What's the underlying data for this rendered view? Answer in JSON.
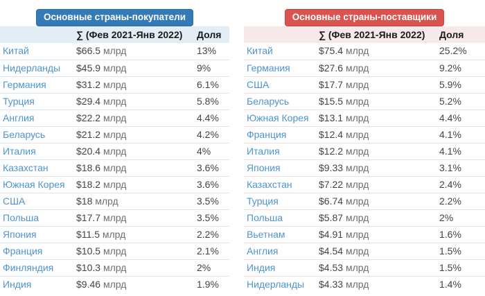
{
  "colors": {
    "buyers_badge_bg": "#337ab7",
    "buyers_badge_border": "#2e6da4",
    "suppliers_badge_bg": "#d9534f",
    "suppliers_badge_border": "#d43f3a",
    "buyers_header_bg": "#e2edf5",
    "suppliers_header_bg": "#f7e9e9",
    "country_link": "#4f94d0",
    "text": "#444444"
  },
  "buyers": {
    "badge_label": "Основные страны-покупатели",
    "sum_header": "∑ (Фев 2021-Янв 2022)",
    "share_header": "Доля",
    "rows": [
      {
        "country": "Китай",
        "amount": "$66.5",
        "unit": "млрд",
        "share": "13%"
      },
      {
        "country": "Нидерланды",
        "amount": "$45.9",
        "unit": "млрд",
        "share": "9%"
      },
      {
        "country": "Германия",
        "amount": "$31.2",
        "unit": "млрд",
        "share": "6.1%"
      },
      {
        "country": "Турция",
        "amount": "$29.4",
        "unit": "млрд",
        "share": "5.8%"
      },
      {
        "country": "Англия",
        "amount": "$22.2",
        "unit": "млрд",
        "share": "4.4%"
      },
      {
        "country": "Беларусь",
        "amount": "$21.2",
        "unit": "млрд",
        "share": "4.2%"
      },
      {
        "country": "Италия",
        "amount": "$20.4",
        "unit": "млрд",
        "share": "4%"
      },
      {
        "country": "Казахстан",
        "amount": "$18.6",
        "unit": "млрд",
        "share": "3.6%"
      },
      {
        "country": "Южная Корея",
        "amount": "$18.2",
        "unit": "млрд",
        "share": "3.6%"
      },
      {
        "country": "США",
        "amount": "$18",
        "unit": "млрд",
        "share": "3.5%"
      },
      {
        "country": "Польша",
        "amount": "$17.7",
        "unit": "млрд",
        "share": "3.5%"
      },
      {
        "country": "Япония",
        "amount": "$11.5",
        "unit": "млрд",
        "share": "2.2%"
      },
      {
        "country": "Франция",
        "amount": "$10.5",
        "unit": "млрд",
        "share": "2.1%"
      },
      {
        "country": "Финляндия",
        "amount": "$10.3",
        "unit": "млрд",
        "share": "2%"
      },
      {
        "country": "Индия",
        "amount": "$9.46",
        "unit": "млрд",
        "share": "1.9%"
      }
    ]
  },
  "suppliers": {
    "badge_label": "Основные страны-поставщики",
    "sum_header": "∑ (Фев 2021-Янв 2022)",
    "share_header": "Доля",
    "rows": [
      {
        "country": "Китай",
        "amount": "$75.4",
        "unit": "млрд",
        "share": "25.2%"
      },
      {
        "country": "Германия",
        "amount": "$27.6",
        "unit": "млрд",
        "share": "9.2%"
      },
      {
        "country": "США",
        "amount": "$17.7",
        "unit": "млрд",
        "share": "5.9%"
      },
      {
        "country": "Беларусь",
        "amount": "$15.5",
        "unit": "млрд",
        "share": "5.2%"
      },
      {
        "country": "Южная Корея",
        "amount": "$13.1",
        "unit": "млрд",
        "share": "4.4%"
      },
      {
        "country": "Франция",
        "amount": "$12.4",
        "unit": "млрд",
        "share": "4.1%"
      },
      {
        "country": "Италия",
        "amount": "$12.2",
        "unit": "млрд",
        "share": "4.1%"
      },
      {
        "country": "Япония",
        "amount": "$9.33",
        "unit": "млрд",
        "share": "3.1%"
      },
      {
        "country": "Казахстан",
        "amount": "$7.22",
        "unit": "млрд",
        "share": "2.4%"
      },
      {
        "country": "Турция",
        "amount": "$6.74",
        "unit": "млрд",
        "share": "2.2%"
      },
      {
        "country": "Польша",
        "amount": "$5.87",
        "unit": "млрд",
        "share": "2%"
      },
      {
        "country": "Вьетнам",
        "amount": "$4.91",
        "unit": "млрд",
        "share": "1.6%"
      },
      {
        "country": "Англия",
        "amount": "$4.54",
        "unit": "млрд",
        "share": "1.5%"
      },
      {
        "country": "Индия",
        "amount": "$4.53",
        "unit": "млрд",
        "share": "1.5%"
      },
      {
        "country": "Нидерланды",
        "amount": "$4.33",
        "unit": "млрд",
        "share": "1.4%"
      }
    ]
  }
}
